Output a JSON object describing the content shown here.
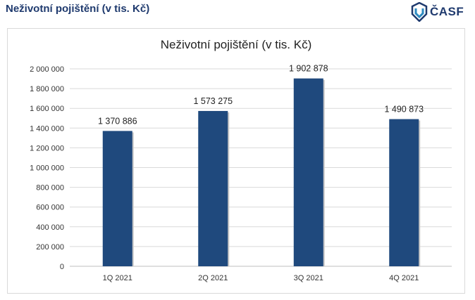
{
  "page": {
    "heading": "Neživotní pojištění (v tis. Kč)"
  },
  "logo": {
    "text": "ČASF",
    "icon": "shield-logo-icon",
    "color": "#1f3a6e",
    "accent": "#2e8bc0"
  },
  "chart_data": {
    "type": "bar",
    "title": "Neživotní pojištění (v tis. Kč)",
    "categories": [
      "1Q 2021",
      "2Q 2021",
      "3Q 2021",
      "4Q 2021"
    ],
    "values": [
      1370886,
      1573275,
      1902878,
      1490873
    ],
    "value_labels": [
      "1 370 886",
      "1 573 275",
      "1 902 878",
      "1 490 873"
    ],
    "ylim": [
      0,
      2000000
    ],
    "yticks": [
      0,
      200000,
      400000,
      600000,
      800000,
      1000000,
      1200000,
      1400000,
      1600000,
      1800000,
      2000000
    ],
    "ytick_labels": [
      "0",
      "200 000",
      "400 000",
      "600 000",
      "800 000",
      "1 000 000",
      "1 200 000",
      "1 400 000",
      "1 600 000",
      "1 800 000",
      "2 000 000"
    ],
    "grid": true,
    "bar_color": "#1f497d",
    "grid_color": "#d9d9d9",
    "xlabel": "",
    "ylabel": ""
  }
}
